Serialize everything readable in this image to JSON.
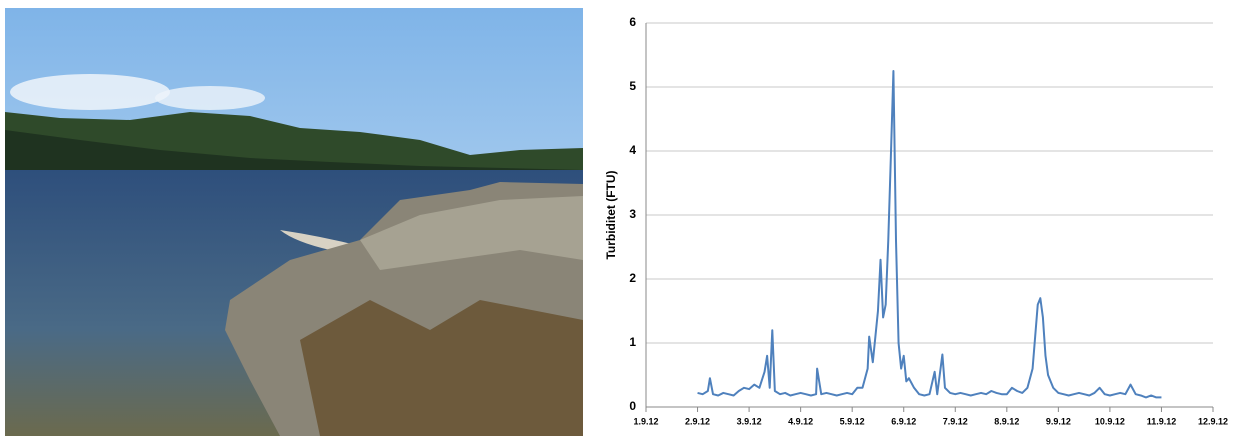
{
  "chart_data": {
    "type": "line",
    "y_label": "Turbiditet (FTU)",
    "x": [
      2.0,
      2.1,
      2.2,
      2.24,
      2.3,
      2.4,
      2.5,
      2.6,
      2.7,
      2.8,
      2.9,
      3.0,
      3.1,
      3.2,
      3.3,
      3.35,
      3.4,
      3.45,
      3.5,
      3.6,
      3.7,
      3.8,
      3.9,
      4.0,
      4.1,
      4.2,
      4.3,
      4.32,
      4.4,
      4.5,
      4.6,
      4.7,
      4.8,
      4.9,
      5.0,
      5.1,
      5.2,
      5.3,
      5.33,
      5.4,
      5.45,
      5.5,
      5.55,
      5.6,
      5.65,
      5.7,
      5.75,
      5.8,
      5.85,
      5.9,
      5.95,
      6.0,
      6.05,
      6.1,
      6.2,
      6.3,
      6.4,
      6.5,
      6.6,
      6.65,
      6.75,
      6.8,
      6.9,
      7.0,
      7.1,
      7.2,
      7.3,
      7.4,
      7.5,
      7.6,
      7.7,
      7.8,
      7.9,
      8.0,
      8.1,
      8.2,
      8.3,
      8.4,
      8.5,
      8.6,
      8.65,
      8.7,
      8.75,
      8.8,
      8.9,
      9.0,
      9.1,
      9.2,
      9.3,
      9.4,
      9.5,
      9.6,
      9.7,
      9.8,
      9.9,
      10.0,
      10.1,
      10.2,
      10.3,
      10.4,
      10.5,
      10.6,
      10.7,
      10.8,
      10.9,
      11.0
    ],
    "values": [
      0.22,
      0.2,
      0.25,
      0.45,
      0.2,
      0.18,
      0.22,
      0.2,
      0.18,
      0.25,
      0.3,
      0.28,
      0.35,
      0.3,
      0.55,
      0.8,
      0.3,
      1.2,
      0.25,
      0.2,
      0.22,
      0.18,
      0.2,
      0.22,
      0.2,
      0.18,
      0.2,
      0.6,
      0.2,
      0.22,
      0.2,
      0.18,
      0.2,
      0.22,
      0.2,
      0.3,
      0.3,
      0.6,
      1.1,
      0.7,
      1.1,
      1.5,
      2.3,
      1.4,
      1.6,
      2.6,
      3.9,
      5.25,
      2.6,
      1.0,
      0.6,
      0.8,
      0.4,
      0.45,
      0.3,
      0.2,
      0.18,
      0.2,
      0.55,
      0.2,
      0.82,
      0.3,
      0.22,
      0.2,
      0.22,
      0.2,
      0.18,
      0.2,
      0.22,
      0.2,
      0.25,
      0.22,
      0.2,
      0.2,
      0.3,
      0.25,
      0.22,
      0.3,
      0.6,
      1.6,
      1.7,
      1.4,
      0.8,
      0.5,
      0.3,
      0.22,
      0.2,
      0.18,
      0.2,
      0.22,
      0.2,
      0.18,
      0.22,
      0.3,
      0.2,
      0.18,
      0.2,
      0.22,
      0.2,
      0.35,
      0.2,
      0.18,
      0.15,
      0.18,
      0.15,
      0.15
    ],
    "color": "#4f81bd",
    "xlim": [
      1,
      12
    ],
    "xticks": [
      {
        "value": 1,
        "label": "1.9.12"
      },
      {
        "value": 2,
        "label": "2.9.12"
      },
      {
        "value": 3,
        "label": "3.9.12"
      },
      {
        "value": 4,
        "label": "4.9.12"
      },
      {
        "value": 5,
        "label": "5.9.12"
      },
      {
        "value": 6,
        "label": "6.9.12"
      },
      {
        "value": 7,
        "label": "7.9.12"
      },
      {
        "value": 8,
        "label": "8.9.12"
      },
      {
        "value": 9,
        "label": "9.9.12"
      },
      {
        "value": 10,
        "label": "10.9.12"
      },
      {
        "value": 11,
        "label": "11.9.12"
      },
      {
        "value": 12,
        "label": "12.9.12"
      }
    ],
    "ylim": [
      0,
      6
    ],
    "yticks": [
      0,
      1,
      2,
      3,
      4,
      5,
      6
    ],
    "grid": true
  }
}
